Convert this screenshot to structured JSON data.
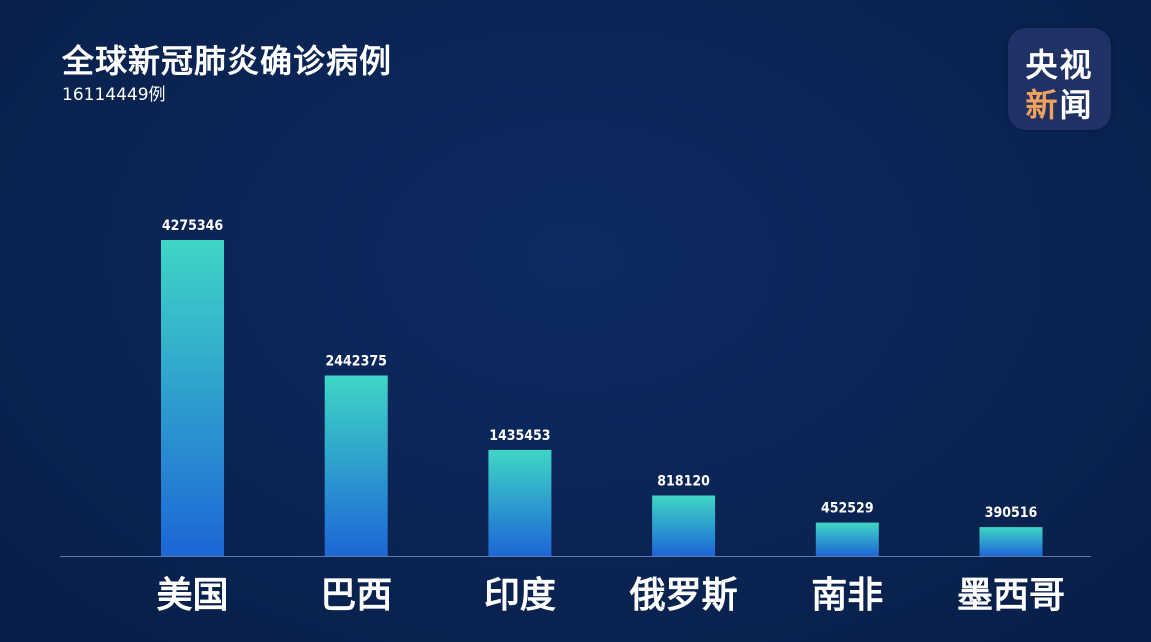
{
  "header": {
    "title": "全球新冠肺炎确诊病例",
    "subtitle": "16114449例"
  },
  "logo": {
    "line1": "央视",
    "line2_part1": "新",
    "line2_part2": "闻",
    "accent_color": "#f2a15a"
  },
  "colors": {
    "background": "#0a2559",
    "bar_top": "#3fd6c6",
    "bar_bottom": "#1d66d6",
    "axis": "#5f79a8"
  },
  "chart_data": {
    "type": "bar",
    "title": "全球新冠肺炎确诊病例",
    "subtitle": "16114449例",
    "categories": [
      "美国",
      "巴西",
      "印度",
      "俄罗斯",
      "南非",
      "墨西哥"
    ],
    "values": [
      4275346,
      2442375,
      1435453,
      818120,
      452529,
      390516
    ],
    "value_labels": [
      "4275346",
      "2442375",
      "1435453",
      "818120",
      "452529",
      "390516"
    ],
    "ylim": [
      0,
      4275346
    ],
    "grid": false,
    "legend": "none"
  }
}
